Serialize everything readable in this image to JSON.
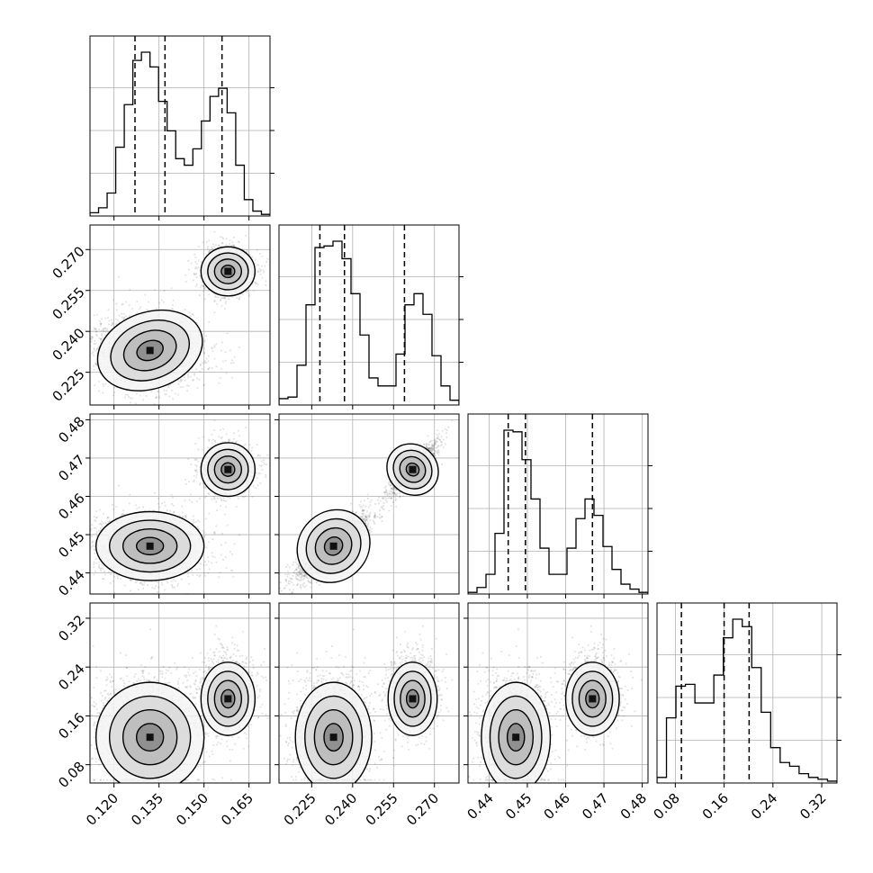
{
  "chart_data": {
    "type": "corner",
    "grid": true,
    "dims": [
      {
        "range": [
          0.112,
          0.172
        ],
        "ticks": [
          0.12,
          0.135,
          0.15,
          0.165
        ],
        "tick_labels": [
          "0.120",
          "0.135",
          "0.150",
          "0.165"
        ]
      },
      {
        "range": [
          0.213,
          0.279
        ],
        "ticks": [
          0.225,
          0.24,
          0.255,
          0.27
        ],
        "tick_labels": [
          "0.225",
          "0.240",
          "0.255",
          "0.270"
        ]
      },
      {
        "range": [
          0.4345,
          0.4815
        ],
        "ticks": [
          0.44,
          0.45,
          0.46,
          0.47,
          0.48
        ],
        "tick_labels": [
          "0.44",
          "0.45",
          "0.46",
          "0.47",
          "0.48"
        ]
      },
      {
        "range": [
          0.05,
          0.345
        ],
        "ticks": [
          0.08,
          0.16,
          0.24,
          0.32
        ],
        "tick_labels": [
          "0.08",
          "0.16",
          "0.24",
          "0.32"
        ]
      }
    ],
    "histograms": [
      {
        "quantiles": [
          0.127,
          0.137,
          0.156
        ],
        "counts": [
          0.02,
          0.05,
          0.14,
          0.42,
          0.68,
          0.95,
          1.0,
          0.91,
          0.7,
          0.52,
          0.35,
          0.31,
          0.41,
          0.58,
          0.73,
          0.78,
          0.63,
          0.31,
          0.1,
          0.03,
          0.01
        ]
      },
      {
        "quantiles": [
          0.228,
          0.237,
          0.259
        ],
        "counts": [
          0.04,
          0.05,
          0.25,
          0.63,
          0.99,
          1.0,
          1.03,
          0.92,
          0.7,
          0.44,
          0.17,
          0.12,
          0.12,
          0.32,
          0.63,
          0.7,
          0.57,
          0.31,
          0.12,
          0.03
        ]
      },
      {
        "quantiles": [
          0.445,
          0.4495,
          0.467
        ],
        "counts": [
          0.01,
          0.04,
          0.12,
          0.37,
          1.0,
          0.99,
          0.82,
          0.58,
          0.28,
          0.12,
          0.12,
          0.28,
          0.46,
          0.58,
          0.48,
          0.29,
          0.15,
          0.06,
          0.03,
          0.01
        ]
      },
      {
        "quantiles": [
          0.09,
          0.16,
          0.201
        ],
        "counts": [
          0.03,
          0.35,
          0.52,
          0.53,
          0.43,
          0.43,
          0.58,
          0.78,
          0.88,
          0.84,
          0.62,
          0.38,
          0.19,
          0.11,
          0.09,
          0.05,
          0.03,
          0.02,
          0.01
        ]
      }
    ],
    "modes": [
      {
        "center": [
          0.132,
          0.233,
          0.447,
          0.125
        ],
        "spread": [
          0.009,
          0.007,
          0.0045,
          0.045
        ],
        "weight": 0.62
      },
      {
        "center": [
          0.158,
          0.262,
          0.467,
          0.188
        ],
        "spread": [
          0.0045,
          0.0045,
          0.0035,
          0.03
        ],
        "weight": 0.38
      }
    ]
  }
}
